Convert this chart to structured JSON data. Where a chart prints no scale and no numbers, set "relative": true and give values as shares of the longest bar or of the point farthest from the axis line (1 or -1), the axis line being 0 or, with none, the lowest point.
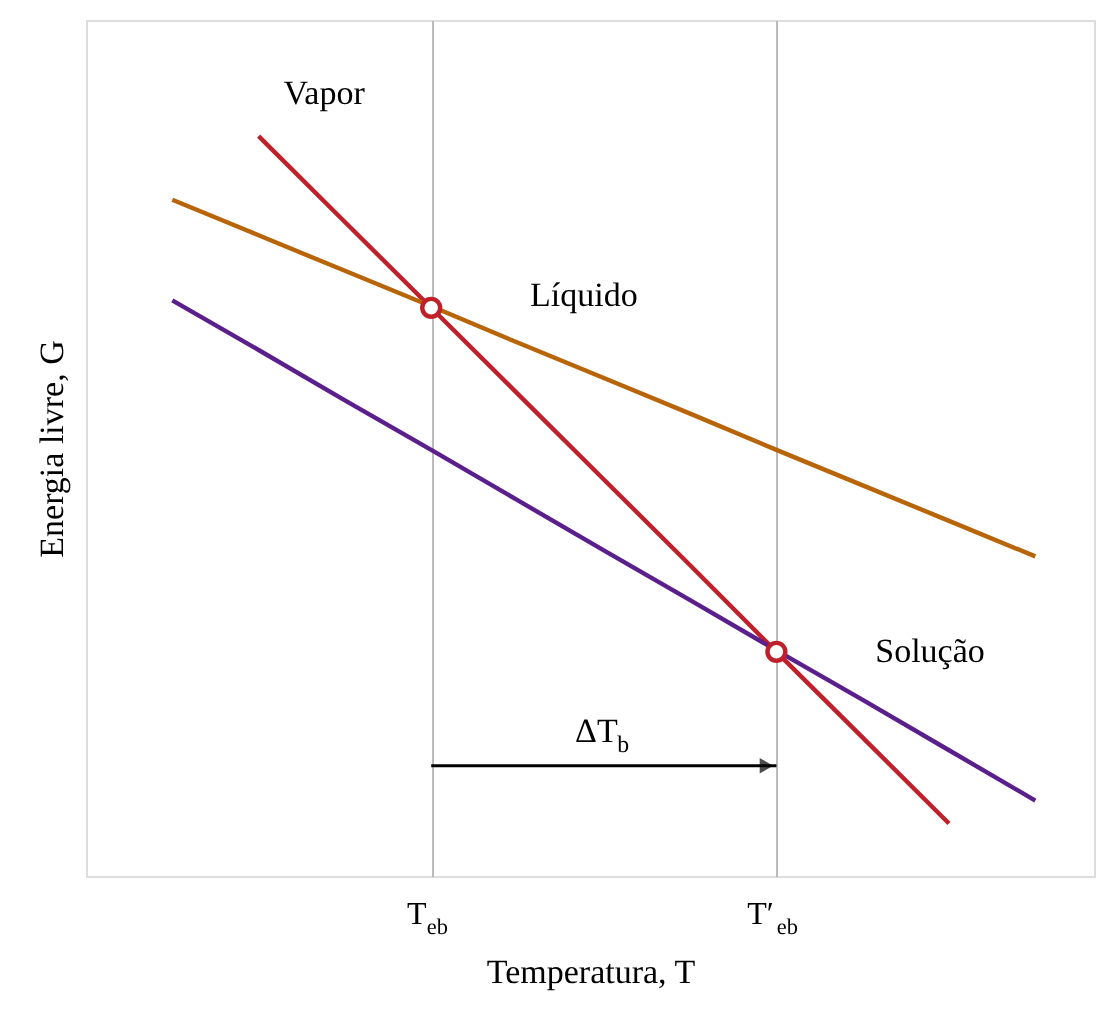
{
  "chart_data": {
    "type": "line",
    "relative": true,
    "xlabel": "Temperatura, T",
    "ylabel": "Energia livre, G",
    "categories": [
      null,
      null,
      null,
      null,
      "T$_{eb}$",
      null,
      null,
      null,
      "T′$_{eb}$",
      null,
      null,
      null
    ],
    "grid": "x",
    "legend": false,
    "line_style": "solid",
    "annotations": [
      "ΔT$_{b}$"
    ],
    "series": [
      {
        "name": "Vapor",
        "type": "line",
        "color": "#c0202a",
        "values": [
          null,
          null,
          1,
          0.884,
          0.768,
          0.652,
          0.536,
          0.42,
          0.303,
          0.187,
          0.071,
          null
        ]
      },
      {
        "name": "Líquido",
        "type": "line",
        "color": "#b8650a",
        "values": [
          null,
          0.914,
          0.866,
          0.818,
          0.77,
          0.721,
          0.673,
          0.625,
          0.576,
          0.528,
          0.48,
          0.432
        ]
      },
      {
        "name": "Solução",
        "type": "line",
        "color": "#5a1f8c",
        "values": [
          null,
          0.778,
          0.711,
          0.643,
          0.576,
          0.508,
          0.44,
          0.373,
          0.305,
          0.238,
          0.17,
          0.102
        ]
      },
      {
        "type": "scatter",
        "color": "#c0202a",
        "marker": "circle",
        "values": [
          null,
          null,
          null,
          null,
          0.768,
          null,
          null,
          null,
          0.303,
          null,
          null,
          null
        ]
      }
    ]
  }
}
